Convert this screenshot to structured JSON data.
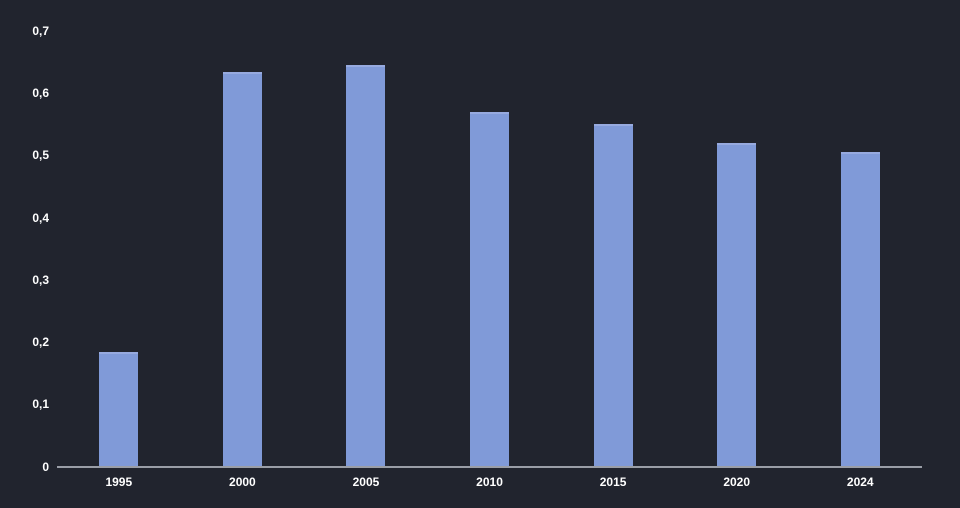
{
  "chart_data": {
    "type": "bar",
    "categories": [
      "1995",
      "2000",
      "2005",
      "2010",
      "2015",
      "2020",
      "2024"
    ],
    "values": [
      0.185,
      0.635,
      0.645,
      0.57,
      0.55,
      0.52,
      0.505
    ],
    "ylim": [
      0,
      0.7
    ],
    "yticks": [
      0,
      0.1,
      0.2,
      0.3,
      0.4,
      0.5,
      0.6,
      0.7
    ],
    "ytick_labels": [
      "0",
      "0,1",
      "0,2",
      "0,3",
      "0,4",
      "0,5",
      "0,6",
      "0,7"
    ],
    "decimal_separator": ",",
    "grid": "off",
    "legend": "none",
    "colors": {
      "background": "#21242e",
      "bar_fill": "#809ad8",
      "bar_top_highlight": "#97aadf",
      "axis_line": "#9a9ea7",
      "label_text": "#ffffff"
    }
  }
}
